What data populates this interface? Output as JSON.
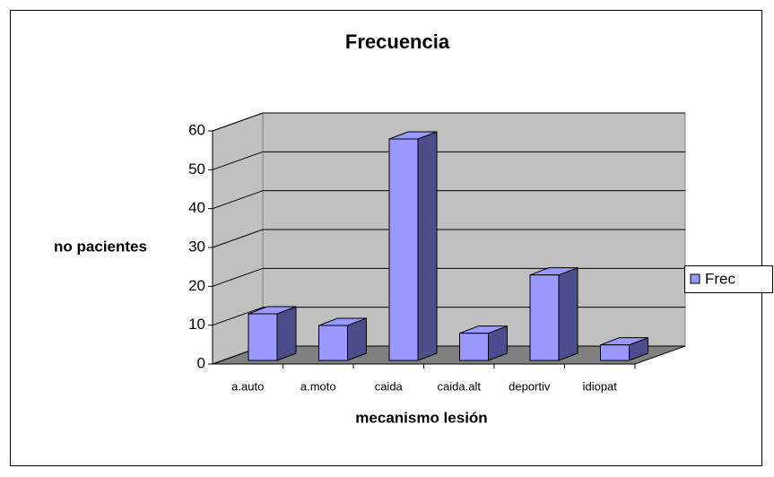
{
  "chart_data": {
    "type": "bar",
    "title": "Frecuencia",
    "x_label": "mecanismo lesión",
    "y_label": "no pacientes",
    "categories": [
      "a.auto",
      "a.moto",
      "caida",
      "caida.alt",
      "deportiv",
      "idiopat"
    ],
    "series": [
      {
        "name": "Frec",
        "color": "#9999ff",
        "values": [
          12,
          9,
          57,
          7,
          22,
          4
        ]
      }
    ],
    "ylim": [
      0,
      60
    ],
    "yticks": [
      0,
      10,
      20,
      30,
      40,
      50,
      60
    ],
    "grid": true,
    "legend": "right"
  }
}
